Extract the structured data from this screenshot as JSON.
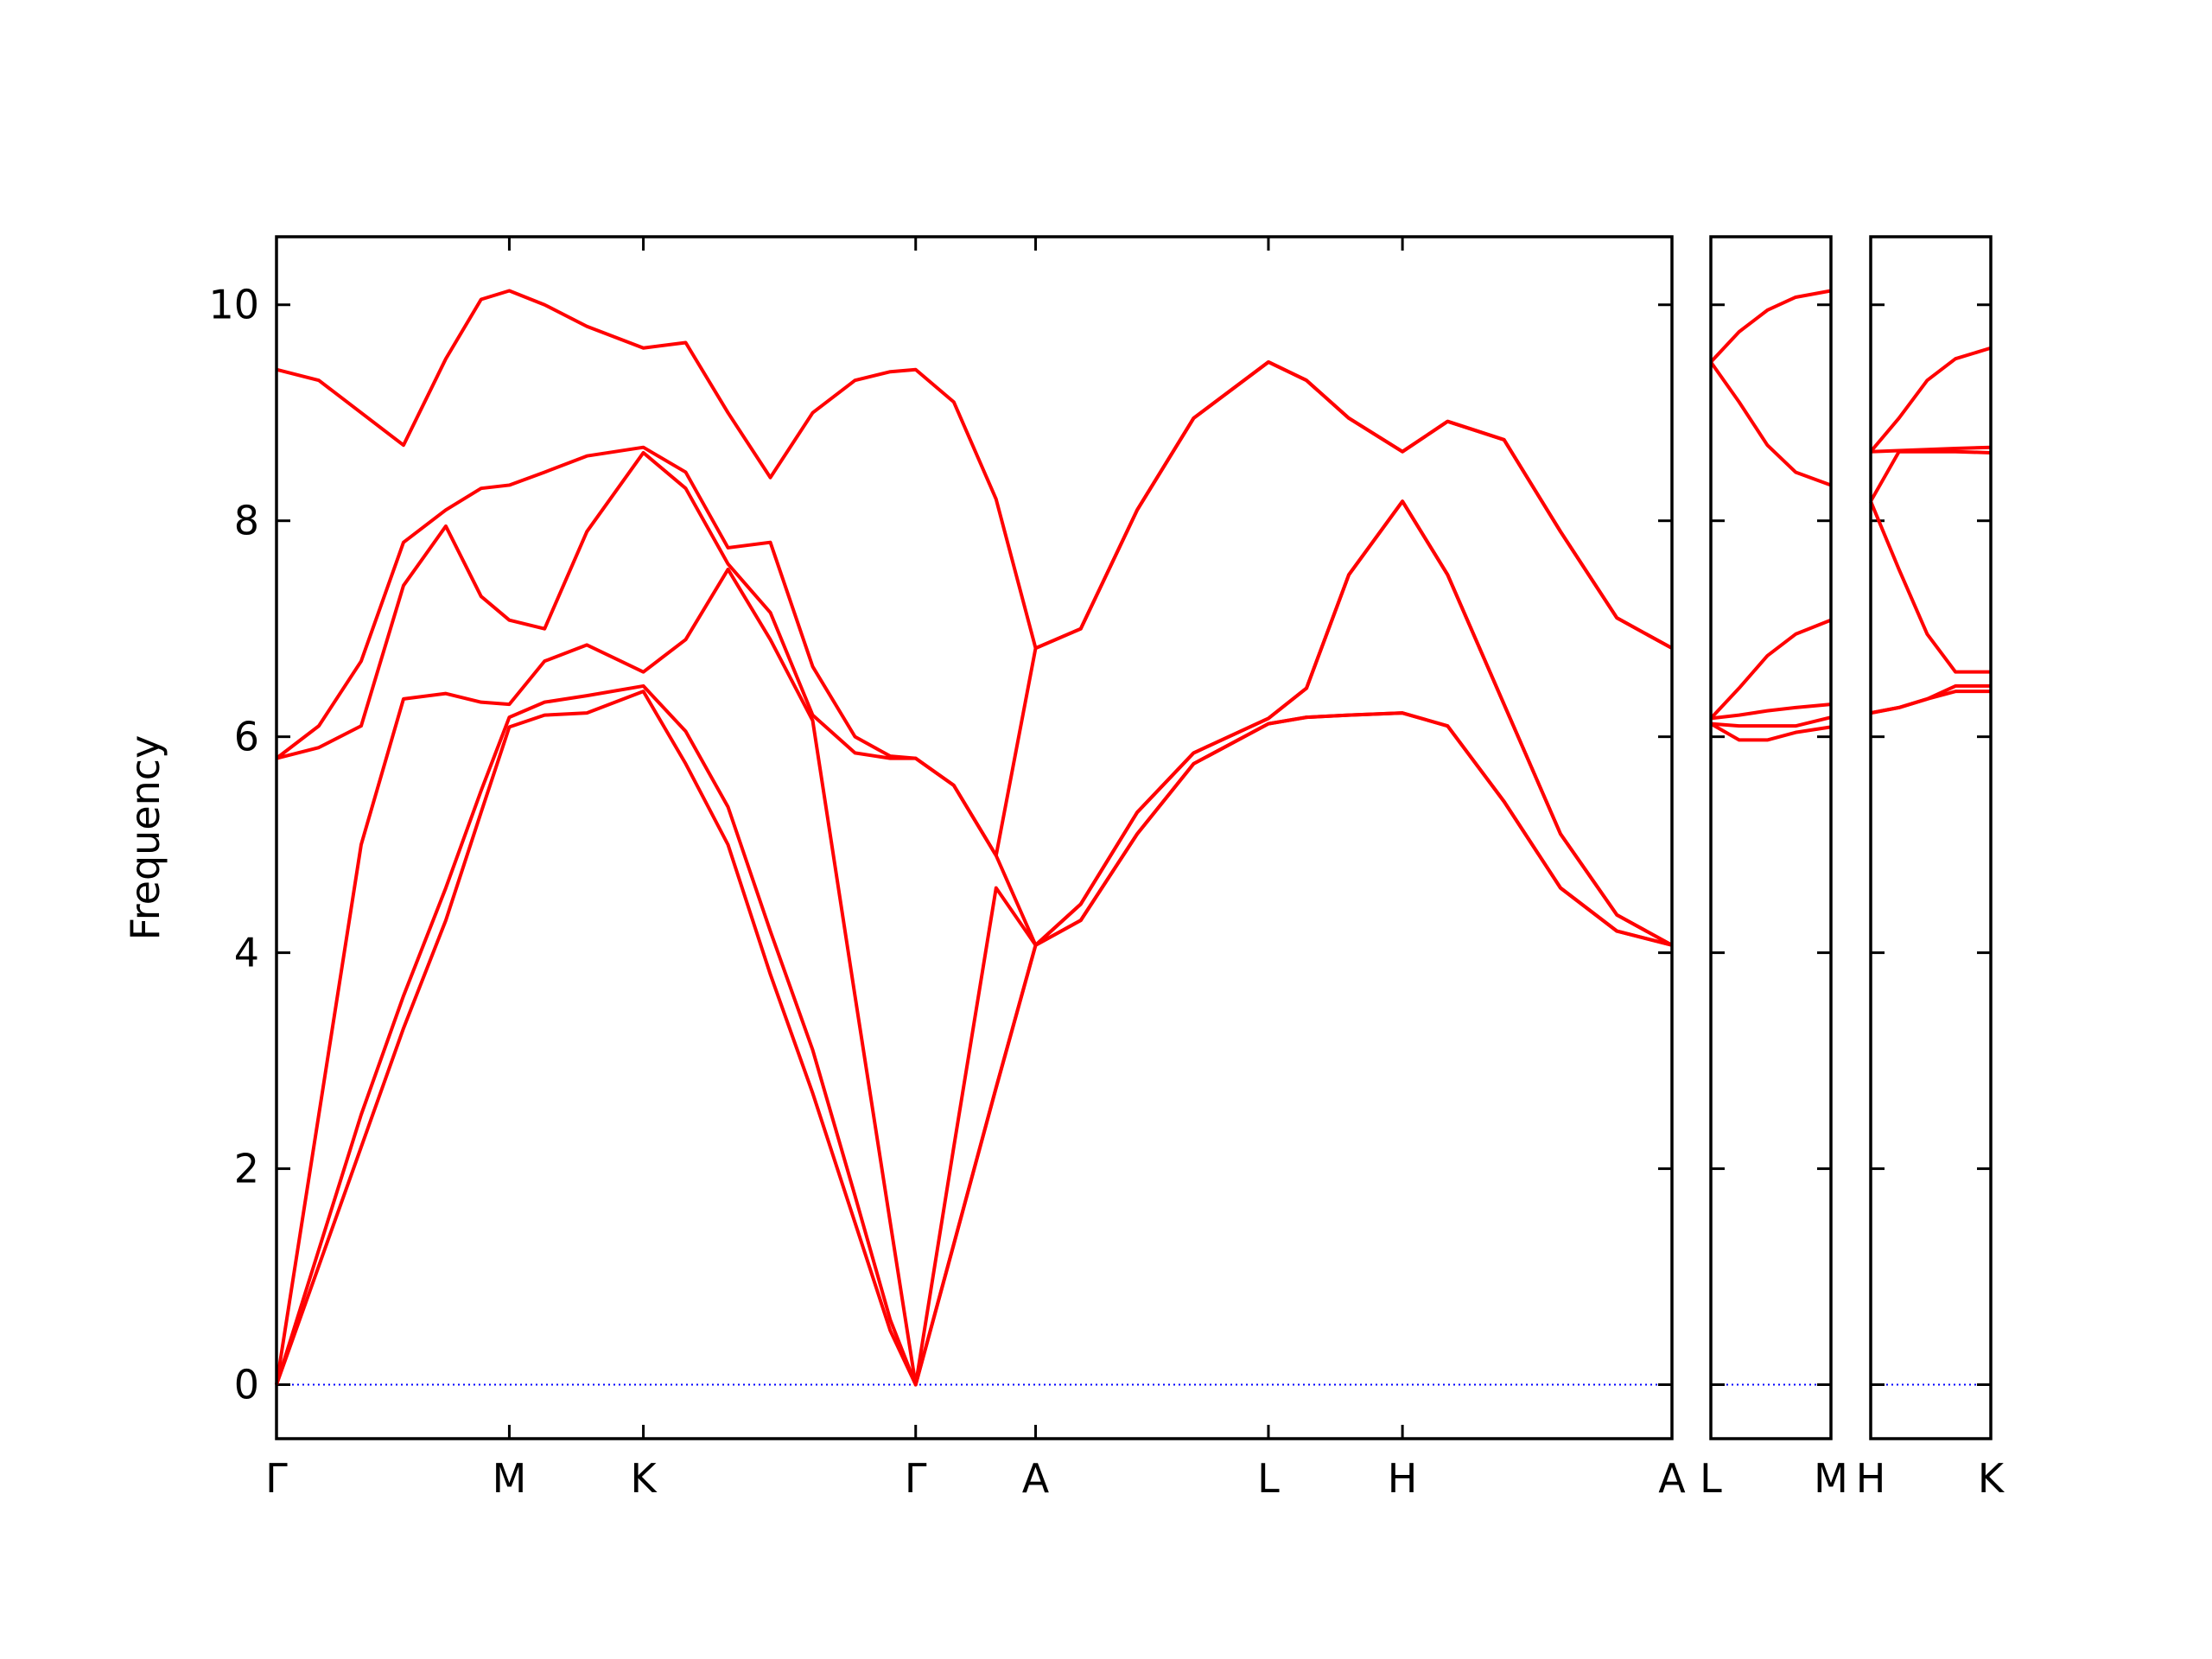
{
  "chart_data": [
    {
      "type": "line",
      "ylabel": "Frequency",
      "color": "#ff0000",
      "ytick_labels": true,
      "reference_line": {
        "value": 0,
        "color": "#0000ff",
        "style": "dotted"
      },
      "xlim": [
        0,
        9.89
      ],
      "ylim": [
        -0.5,
        10.63
      ],
      "yticks": [
        0,
        2,
        4,
        6,
        8,
        10
      ],
      "xticks": [
        {
          "value": 0,
          "label": "Γ"
        },
        {
          "value": 1.65,
          "label": "M"
        },
        {
          "value": 2.6,
          "label": "K"
        },
        {
          "value": 4.53,
          "label": "Γ"
        },
        {
          "value": 5.38,
          "label": "A"
        },
        {
          "value": 7.03,
          "label": "L"
        },
        {
          "value": 7.98,
          "label": "H"
        },
        {
          "value": 9.89,
          "label": "A"
        }
      ],
      "x": [
        0,
        0.3,
        0.6,
        0.9,
        1.2,
        1.45,
        1.65,
        1.9,
        2.2,
        2.6,
        2.9,
        3.2,
        3.5,
        3.8,
        4.1,
        4.35,
        4.53,
        4.8,
        5.1,
        5.38,
        5.7,
        6.1,
        6.5,
        7.03,
        7.3,
        7.6,
        7.98,
        8.3,
        8.7,
        9.1,
        9.5,
        9.89
      ],
      "series": [
        {
          "values": [
            0,
            1.1,
            2.2,
            3.3,
            4.3,
            5.3,
            6.09,
            6.2,
            6.22,
            6.42,
            5.75,
            5.0,
            3.8,
            2.7,
            1.5,
            0.5,
            0,
            1.3,
            2.75,
            4.07,
            4.3,
            5.1,
            5.75,
            6.12,
            6.18,
            6.2,
            6.22,
            6.1,
            5.4,
            4.6,
            4.2,
            4.07
          ]
        },
        {
          "values": [
            0,
            1.25,
            2.5,
            3.6,
            4.6,
            5.5,
            6.18,
            6.32,
            6.38,
            6.47,
            6.05,
            5.35,
            4.2,
            3.1,
            1.75,
            0.6,
            0,
            1.3,
            2.75,
            4.07,
            4.3,
            5.1,
            5.75,
            6.12,
            6.18,
            6.2,
            6.22,
            6.1,
            5.4,
            4.6,
            4.2,
            4.07
          ]
        },
        {
          "values": [
            0,
            2.5,
            5.0,
            6.35,
            6.4,
            6.32,
            6.3,
            6.7,
            6.85,
            6.6,
            6.9,
            7.55,
            6.9,
            6.15,
            3.6,
            1.5,
            0,
            2.2,
            4.6,
            4.07,
            4.45,
            5.3,
            5.85,
            6.17,
            6.45,
            7.5,
            8.18,
            7.5,
            6.3,
            5.1,
            4.35,
            4.07
          ]
        },
        {
          "values": [
            5.8,
            5.9,
            6.1,
            7.4,
            7.95,
            7.3,
            7.08,
            7.0,
            7.9,
            8.63,
            8.3,
            7.6,
            7.15,
            6.2,
            5.85,
            5.8,
            5.8,
            5.55,
            4.9,
            4.07,
            4.45,
            5.3,
            5.85,
            6.17,
            6.45,
            7.5,
            8.18,
            7.5,
            6.3,
            5.1,
            4.35,
            4.07
          ]
        },
        {
          "values": [
            5.8,
            6.1,
            6.7,
            7.8,
            8.1,
            8.3,
            8.33,
            8.45,
            8.6,
            8.68,
            8.45,
            7.75,
            7.8,
            6.65,
            6.0,
            5.82,
            5.8,
            5.55,
            4.9,
            6.82,
            7.0,
            8.1,
            8.95,
            9.47,
            9.3,
            8.95,
            8.64,
            8.92,
            8.75,
            7.9,
            7.1,
            6.82
          ]
        },
        {
          "values": [
            9.4,
            9.3,
            9.0,
            8.7,
            9.5,
            10.05,
            10.13,
            10.0,
            9.8,
            9.6,
            9.65,
            9.0,
            8.4,
            9.0,
            9.3,
            9.38,
            9.4,
            9.1,
            8.2,
            6.82,
            7.0,
            8.1,
            8.95,
            9.47,
            9.3,
            8.95,
            8.64,
            8.92,
            8.75,
            7.9,
            7.1,
            6.82
          ]
        }
      ]
    },
    {
      "type": "line",
      "color": "#ff0000",
      "ytick_labels": false,
      "reference_line": {
        "value": 0,
        "color": "#0000ff",
        "style": "dotted"
      },
      "xlim": [
        0,
        0.85
      ],
      "ylim": [
        -0.5,
        10.63
      ],
      "yticks": [
        0,
        2,
        4,
        6,
        8,
        10
      ],
      "xticks": [
        {
          "value": 0,
          "label": "L"
        },
        {
          "value": 0.85,
          "label": "M"
        }
      ],
      "x": [
        0,
        0.2,
        0.4,
        0.6,
        0.85
      ],
      "series": [
        {
          "values": [
            6.12,
            5.97,
            5.97,
            6.04,
            6.09
          ]
        },
        {
          "values": [
            6.12,
            6.1,
            6.1,
            6.1,
            6.18
          ]
        },
        {
          "values": [
            6.17,
            6.2,
            6.24,
            6.27,
            6.3
          ]
        },
        {
          "values": [
            6.17,
            6.45,
            6.75,
            6.95,
            7.08
          ]
        },
        {
          "values": [
            9.47,
            9.1,
            8.7,
            8.45,
            8.33
          ]
        },
        {
          "values": [
            9.47,
            9.75,
            9.95,
            10.07,
            10.13
          ]
        }
      ]
    },
    {
      "type": "line",
      "color": "#ff0000",
      "ytick_labels": false,
      "reference_line": {
        "value": 0,
        "color": "#0000ff",
        "style": "dotted"
      },
      "xlim": [
        0,
        0.85
      ],
      "ylim": [
        -0.5,
        10.63
      ],
      "yticks": [
        0,
        2,
        4,
        6,
        8,
        10
      ],
      "xticks": [
        {
          "value": 0,
          "label": "H"
        },
        {
          "value": 0.85,
          "label": "K"
        }
      ],
      "x": [
        0,
        0.2,
        0.4,
        0.6,
        0.85
      ],
      "series": [
        {
          "values": [
            6.22,
            6.27,
            6.35,
            6.42,
            6.42
          ]
        },
        {
          "values": [
            6.22,
            6.27,
            6.35,
            6.47,
            6.47
          ]
        },
        {
          "values": [
            8.18,
            7.55,
            6.95,
            6.6,
            6.6
          ]
        },
        {
          "values": [
            8.18,
            8.64,
            8.64,
            8.64,
            8.63
          ]
        },
        {
          "values": [
            8.64,
            8.65,
            8.66,
            8.67,
            8.68
          ]
        },
        {
          "values": [
            8.64,
            8.95,
            9.3,
            9.5,
            9.6
          ]
        }
      ]
    }
  ]
}
